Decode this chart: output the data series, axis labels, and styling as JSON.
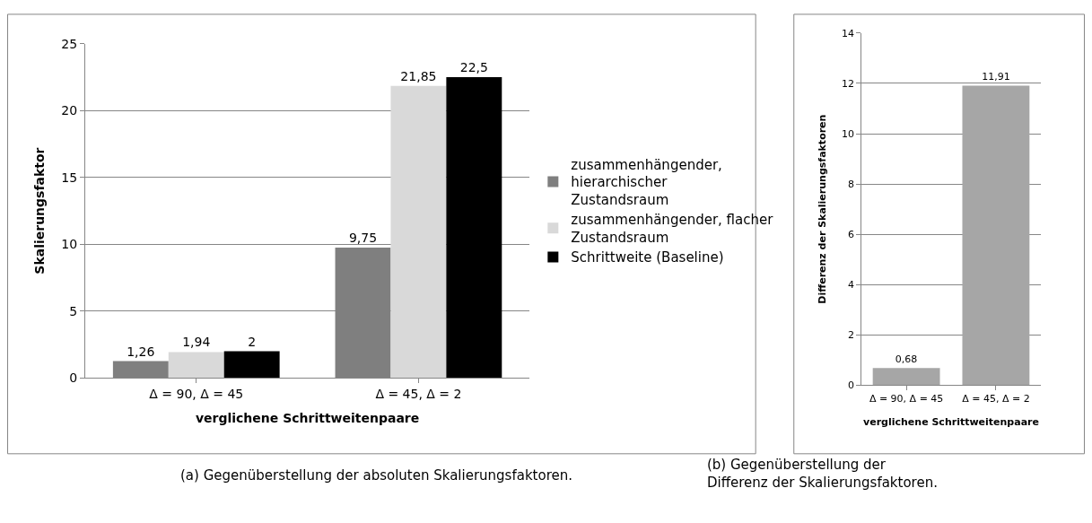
{
  "chart_data": [
    {
      "type": "bar",
      "categories": [
        "Δ = 90, Δ = 45",
        "Δ = 45, Δ = 2"
      ],
      "xlabel": "verglichene Schrittweitenpaare",
      "ylabel": "Skalierungsfaktor",
      "ylim": [
        0,
        25
      ],
      "yticks": [
        0,
        5,
        10,
        15,
        20,
        25
      ],
      "grid": "y",
      "legend": "right",
      "series": [
        {
          "name": "zusammenhängender, hierarchischer Zustandsraum",
          "color": "#7f7f7f",
          "values": [
            1.26,
            9.75
          ],
          "value_labels": [
            "1,26",
            "9,75"
          ]
        },
        {
          "name": "zusammenhängender, flacher Zustandsraum",
          "color": "#d9d9d9",
          "values": [
            1.94,
            21.85
          ],
          "value_labels": [
            "1,94",
            "21,85"
          ]
        },
        {
          "name": "Schrittweite (Baseline)",
          "color": "#000000",
          "values": [
            2,
            22.5
          ],
          "value_labels": [
            "2",
            "22,5"
          ]
        }
      ],
      "annotations": [
        "(a) Gegenüberstellung der absoluten Skalierungsfaktoren."
      ]
    },
    {
      "type": "bar",
      "categories": [
        "Δ = 90, Δ = 45",
        "Δ = 45, Δ = 2"
      ],
      "xlabel": "verglichene Schrittweitenpaare",
      "ylabel": "Differenz der Skalierungsfaktoren",
      "ylim": [
        0,
        14
      ],
      "yticks": [
        0,
        2,
        4,
        6,
        8,
        10,
        12,
        14
      ],
      "grid": "y",
      "legend": false,
      "series": [
        {
          "color": "#a6a6a6",
          "values": [
            0.68,
            11.91
          ],
          "value_labels": [
            "0,68",
            "11,91"
          ]
        }
      ],
      "annotations": [
        "(b) Gegenüberstellung der Differenz der Skalierungsfaktoren."
      ]
    }
  ]
}
